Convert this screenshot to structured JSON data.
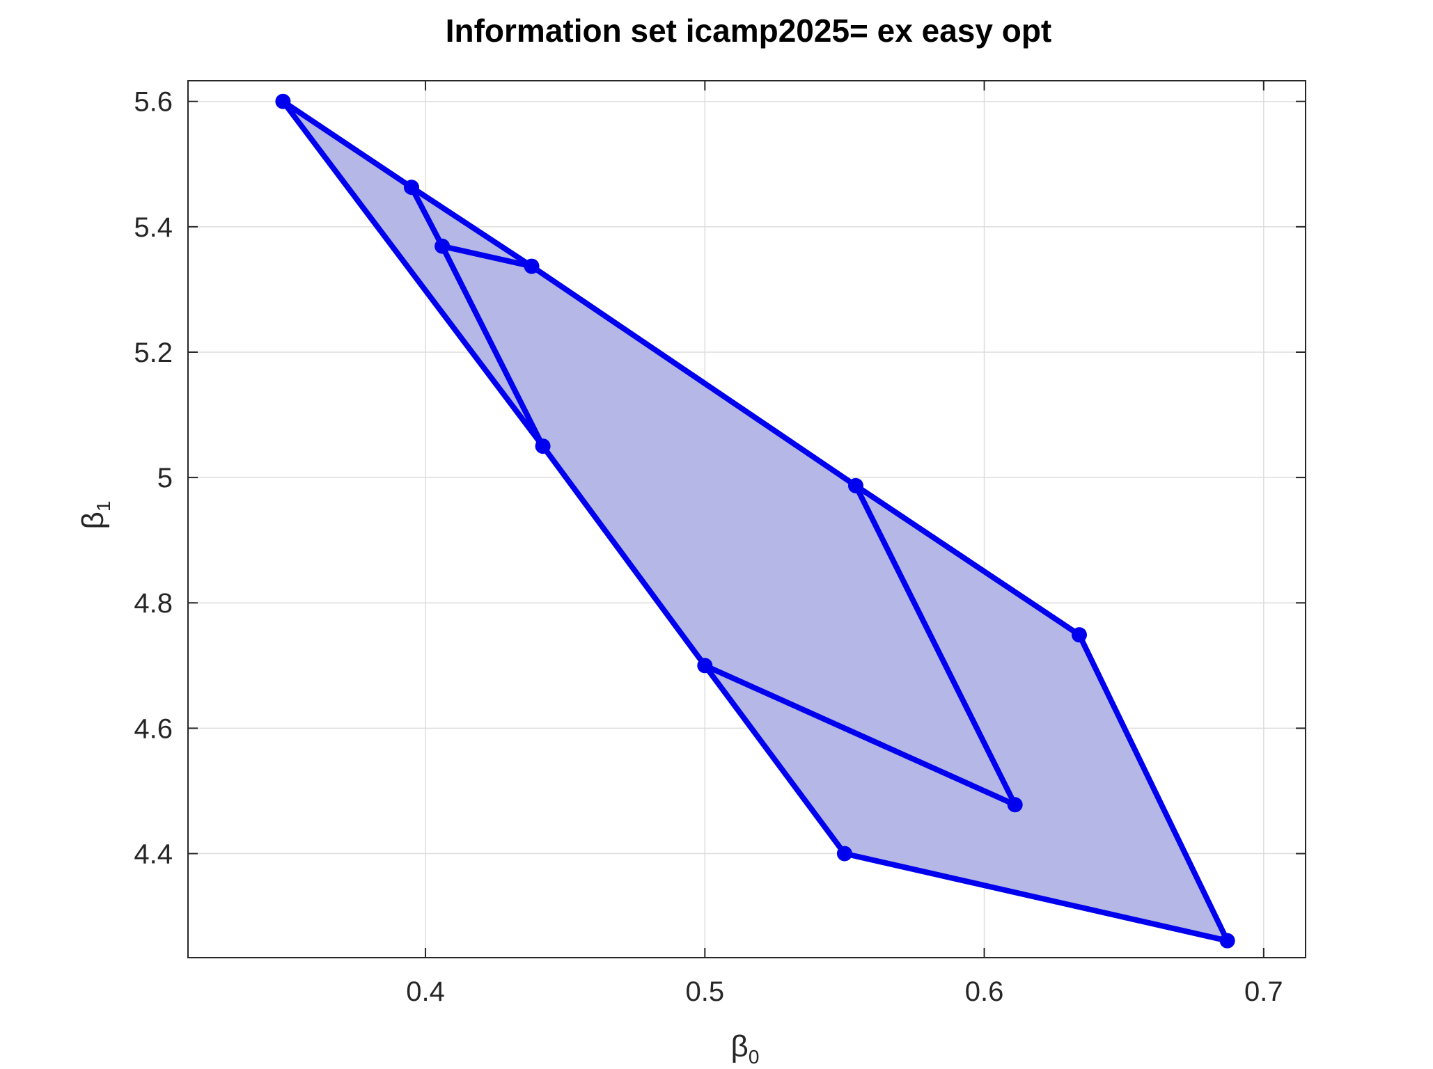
{
  "chart_data": {
    "type": "area",
    "title": "Information set icamp2025= ex easy opt",
    "xlabel": "β",
    "xlabel_sub": "0",
    "ylabel": "β",
    "ylabel_sub": "1",
    "xlim": [
      0.315,
      0.715
    ],
    "ylim": [
      4.234,
      5.633
    ],
    "xticks": [
      0.4,
      0.5,
      0.6,
      0.7
    ],
    "xtick_labels": [
      "0.4",
      "0.5",
      "0.6",
      "0.7"
    ],
    "yticks": [
      4.4,
      4.6,
      4.8,
      5.0,
      5.2,
      5.4,
      5.6
    ],
    "ytick_labels": [
      "4.4",
      "4.6",
      "4.8",
      "5",
      "5.2",
      "5.4",
      "5.6"
    ],
    "grid": true,
    "colors": {
      "line": "#0000ee",
      "fill": "#b5b8e6",
      "grid": "#dddddd",
      "axis": "#262626"
    },
    "fill_region": {
      "x": [
        0.349,
        0.395,
        0.438,
        0.554,
        0.634,
        0.687,
        0.55,
        0.5,
        0.442
      ],
      "y": [
        5.6,
        5.463,
        5.337,
        4.987,
        4.749,
        4.261,
        4.4,
        4.7,
        5.05
      ]
    },
    "series": [
      {
        "x": [
          0.349,
          0.442,
          0.5,
          0.55,
          0.687,
          0.634,
          0.554,
          0.438,
          0.395,
          0.349
        ],
        "y": [
          5.6,
          5.05,
          4.7,
          4.4,
          4.261,
          4.749,
          4.987,
          5.337,
          5.463,
          5.6
        ]
      },
      {
        "x": [
          0.395,
          0.406,
          0.438
        ],
        "y": [
          5.463,
          5.369,
          5.337
        ]
      },
      {
        "x": [
          0.406,
          0.442
        ],
        "y": [
          5.369,
          5.05
        ]
      },
      {
        "x": [
          0.554,
          0.611,
          0.5
        ],
        "y": [
          4.987,
          4.478,
          4.7
        ]
      }
    ]
  }
}
